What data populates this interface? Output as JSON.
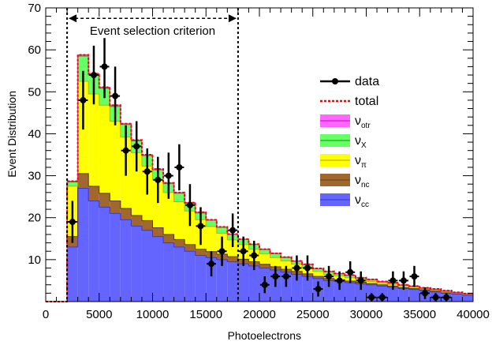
{
  "chart_data": {
    "type": "bar",
    "xlabel": "Photoelectrons",
    "ylabel": "Event Distribution",
    "xlim": [
      0,
      40000
    ],
    "ylim": [
      0,
      70
    ],
    "xticks": [
      0,
      5000,
      10000,
      15000,
      20000,
      25000,
      30000,
      35000,
      40000
    ],
    "xtick_labels": [
      "0",
      "5000",
      "10000",
      "15000",
      "20000",
      "25000",
      "30000",
      "35000",
      "40000"
    ],
    "yticks": [
      10,
      20,
      30,
      40,
      50,
      60,
      70
    ],
    "ytick_labels": [
      "10",
      "20",
      "30",
      "40",
      "50",
      "60",
      "70"
    ],
    "grid": false,
    "legend_position": "right",
    "bin_edges": [
      0,
      2000,
      3000,
      4000,
      5000,
      6000,
      7000,
      8000,
      9000,
      10000,
      11000,
      12000,
      13000,
      14000,
      15000,
      16000,
      17000,
      18000,
      19000,
      20000,
      21000,
      22000,
      23000,
      24000,
      25000,
      26000,
      27000,
      28000,
      29000,
      30000,
      31000,
      32000,
      33000,
      34000,
      35000,
      36000,
      37000,
      38000,
      39000,
      40000
    ],
    "stacked_series": [
      {
        "key": "cc",
        "color": "#6464ff",
        "values": [
          0,
          13,
          27,
          24,
          22.5,
          21,
          19.5,
          18,
          17,
          15.5,
          14,
          13,
          12,
          11,
          10.5,
          10,
          9.5,
          9,
          8.5,
          8,
          7.5,
          7,
          6.5,
          6,
          5.5,
          5,
          4.8,
          4.5,
          4.2,
          4,
          3.7,
          3.4,
          3.1,
          2.9,
          2.6,
          2.3,
          2,
          1.8,
          1.5
        ]
      },
      {
        "key": "nc",
        "color": "#a0682e",
        "values": [
          0,
          2.5,
          3.5,
          3.5,
          3.3,
          3,
          2.7,
          2.5,
          2.3,
          2.1,
          2,
          1.8,
          1.6,
          1.5,
          1.4,
          1.3,
          1.2,
          1.1,
          1,
          0.9,
          0.8,
          0.7,
          0.7,
          0.6,
          0.5,
          0.5,
          0.4,
          0.4,
          0.4,
          0.3,
          0.3,
          0.3,
          0.2,
          0.2,
          0.2,
          0.2,
          0.1,
          0.1,
          0.1
        ]
      },
      {
        "key": "pi",
        "color": "#ffff00",
        "values": [
          0,
          12,
          22,
          22,
          21,
          19,
          17,
          15,
          13,
          11.5,
          10,
          9,
          8,
          7,
          6,
          5,
          4,
          3.5,
          3,
          2.5,
          2.2,
          2,
          1.7,
          1.5,
          1.2,
          1,
          0.9,
          0.8,
          0.6,
          0.5,
          0.4,
          0.4,
          0.3,
          0.3,
          0.2,
          0.2,
          0.2,
          0.1,
          0.1
        ]
      },
      {
        "key": "X",
        "color": "#66ff66",
        "values": [
          0,
          1,
          6,
          4.5,
          4,
          3.5,
          3,
          2.8,
          2.5,
          2.3,
          2.1,
          2,
          1.8,
          1.6,
          1.5,
          1.4,
          1.3,
          1.2,
          1.1,
          1,
          0.9,
          0.8,
          0.7,
          0.7,
          0.6,
          0.6,
          0.5,
          0.5,
          0.4,
          0.4,
          0.3,
          0.3,
          0.3,
          0.2,
          0.2,
          0.2,
          0.2,
          0.1,
          0.1
        ]
      },
      {
        "key": "otr",
        "color": "#ff66ff",
        "values": [
          0,
          0.2,
          0.3,
          0.3,
          0.3,
          0.3,
          0.2,
          0.2,
          0.2,
          0.2,
          0.2,
          0.2,
          0.2,
          0.2,
          0.1,
          0.1,
          0.1,
          0.1,
          0.1,
          0.1,
          0.1,
          0.1,
          0.1,
          0.1,
          0.1,
          0.1,
          0.1,
          0.1,
          0.1,
          0.1,
          0.1,
          0.1,
          0.1,
          0.1,
          0.1,
          0.1,
          0.1,
          0.1,
          0.1
        ]
      }
    ],
    "data_points": [
      {
        "x": 2500,
        "y": 19,
        "err": 5
      },
      {
        "x": 3500,
        "y": 48,
        "err": 7
      },
      {
        "x": 4500,
        "y": 54,
        "err": 7
      },
      {
        "x": 5500,
        "y": 56,
        "err": 7.5
      },
      {
        "x": 6500,
        "y": 49,
        "err": 7
      },
      {
        "x": 7500,
        "y": 36,
        "err": 6
      },
      {
        "x": 8500,
        "y": 37,
        "err": 6
      },
      {
        "x": 9500,
        "y": 31,
        "err": 5.5
      },
      {
        "x": 10500,
        "y": 29,
        "err": 5.5
      },
      {
        "x": 11500,
        "y": 30,
        "err": 5.5
      },
      {
        "x": 12500,
        "y": 32,
        "err": 5.5
      },
      {
        "x": 13500,
        "y": 23,
        "err": 5
      },
      {
        "x": 14500,
        "y": 18,
        "err": 4.5
      },
      {
        "x": 15500,
        "y": 9,
        "err": 3
      },
      {
        "x": 16500,
        "y": 12,
        "err": 3.5
      },
      {
        "x": 17500,
        "y": 17,
        "err": 4
      },
      {
        "x": 18500,
        "y": 12,
        "err": 3.5
      },
      {
        "x": 19500,
        "y": 11,
        "err": 3.5
      },
      {
        "x": 20500,
        "y": 4,
        "err": 2
      },
      {
        "x": 21500,
        "y": 6,
        "err": 2.5
      },
      {
        "x": 22500,
        "y": 6,
        "err": 2.5
      },
      {
        "x": 23500,
        "y": 8,
        "err": 3
      },
      {
        "x": 24500,
        "y": 8,
        "err": 3
      },
      {
        "x": 25500,
        "y": 3,
        "err": 1.8
      },
      {
        "x": 26500,
        "y": 6,
        "err": 2.5
      },
      {
        "x": 27500,
        "y": 5,
        "err": 2.2
      },
      {
        "x": 28500,
        "y": 7,
        "err": 2.6
      },
      {
        "x": 29500,
        "y": 5,
        "err": 2.2
      },
      {
        "x": 30500,
        "y": 1,
        "err": 1
      },
      {
        "x": 31500,
        "y": 1,
        "err": 1
      },
      {
        "x": 32500,
        "y": 5,
        "err": 2.2
      },
      {
        "x": 33500,
        "y": 5,
        "err": 2.2
      },
      {
        "x": 34500,
        "y": 6,
        "err": 2.5
      },
      {
        "x": 35500,
        "y": 2,
        "err": 1.4
      },
      {
        "x": 36500,
        "y": 1,
        "err": 1
      },
      {
        "x": 37500,
        "y": 1,
        "err": 1
      }
    ],
    "selection": {
      "x_min": 2000,
      "x_max": 18000,
      "label": "Event selection criterion"
    },
    "legend": [
      {
        "key": "data",
        "label": "data",
        "style": "marker"
      },
      {
        "key": "total",
        "label": "total",
        "style": "dashed",
        "color": "#ff0000"
      },
      {
        "key": "otr",
        "label": "ν",
        "sub": "otr",
        "style": "fill",
        "color": "#ff66ff",
        "line": "#cc00cc"
      },
      {
        "key": "X",
        "label": "ν",
        "sub": "X",
        "style": "fill",
        "color": "#66ff66",
        "line": "#009900"
      },
      {
        "key": "pi",
        "label": "ν",
        "sub": "π",
        "style": "fill",
        "color": "#ffff00",
        "line": "#aaaa00"
      },
      {
        "key": "nc",
        "label": "ν",
        "sub": "nc",
        "style": "fill",
        "color": "#a0682e",
        "line": "#6b4015"
      },
      {
        "key": "cc",
        "label": "ν",
        "sub": "cc",
        "style": "fill",
        "color": "#6464ff",
        "line": "#3333cc"
      }
    ]
  }
}
